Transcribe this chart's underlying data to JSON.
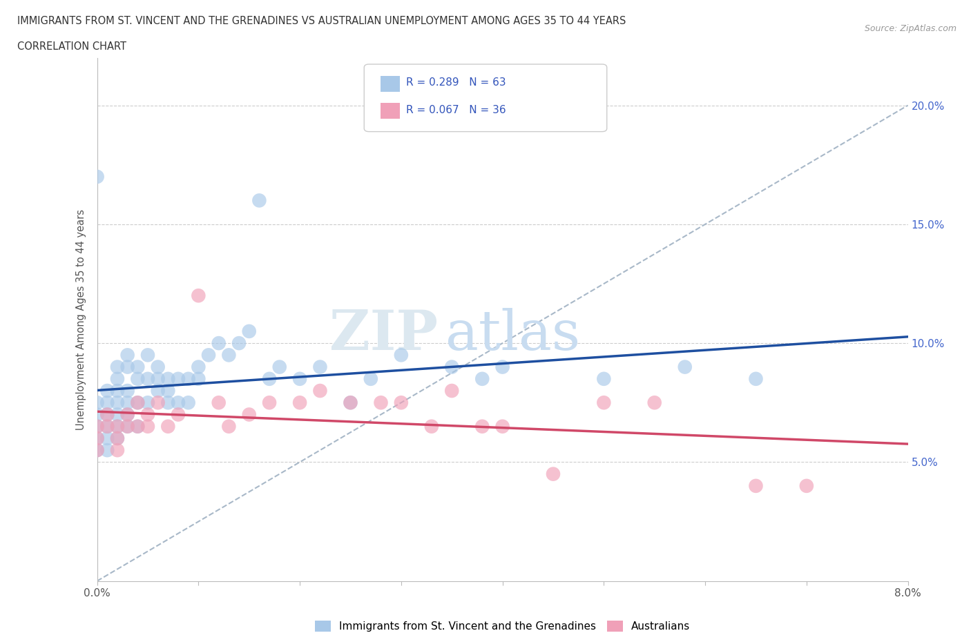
{
  "title_line1": "IMMIGRANTS FROM ST. VINCENT AND THE GRENADINES VS AUSTRALIAN UNEMPLOYMENT AMONG AGES 35 TO 44 YEARS",
  "title_line2": "CORRELATION CHART",
  "source_text": "Source: ZipAtlas.com",
  "ylabel": "Unemployment Among Ages 35 to 44 years",
  "xlim": [
    0.0,
    0.08
  ],
  "ylim": [
    0.0,
    0.22
  ],
  "blue_color": "#A8C8E8",
  "pink_color": "#F0A0B8",
  "blue_line_color": "#1E4FA0",
  "pink_line_color": "#D04868",
  "dash_line_color": "#A8B8C8",
  "blue_scatter_x": [
    0.0,
    0.0,
    0.0,
    0.0,
    0.0,
    0.001,
    0.001,
    0.001,
    0.001,
    0.001,
    0.001,
    0.002,
    0.002,
    0.002,
    0.002,
    0.002,
    0.002,
    0.002,
    0.003,
    0.003,
    0.003,
    0.003,
    0.003,
    0.003,
    0.004,
    0.004,
    0.004,
    0.004,
    0.005,
    0.005,
    0.005,
    0.006,
    0.006,
    0.006,
    0.007,
    0.007,
    0.007,
    0.008,
    0.008,
    0.009,
    0.009,
    0.01,
    0.01,
    0.011,
    0.012,
    0.013,
    0.014,
    0.015,
    0.016,
    0.017,
    0.018,
    0.02,
    0.022,
    0.025,
    0.027,
    0.03,
    0.035,
    0.038,
    0.04,
    0.05,
    0.058,
    0.065,
    0.0
  ],
  "blue_scatter_y": [
    0.07,
    0.075,
    0.065,
    0.06,
    0.055,
    0.08,
    0.075,
    0.07,
    0.065,
    0.06,
    0.055,
    0.09,
    0.085,
    0.08,
    0.075,
    0.07,
    0.065,
    0.06,
    0.095,
    0.09,
    0.08,
    0.075,
    0.07,
    0.065,
    0.09,
    0.085,
    0.075,
    0.065,
    0.095,
    0.085,
    0.075,
    0.09,
    0.085,
    0.08,
    0.085,
    0.08,
    0.075,
    0.085,
    0.075,
    0.085,
    0.075,
    0.09,
    0.085,
    0.095,
    0.1,
    0.095,
    0.1,
    0.105,
    0.16,
    0.085,
    0.09,
    0.085,
    0.09,
    0.075,
    0.085,
    0.095,
    0.09,
    0.085,
    0.09,
    0.085,
    0.09,
    0.085,
    0.17
  ],
  "pink_scatter_x": [
    0.0,
    0.0,
    0.0,
    0.001,
    0.001,
    0.002,
    0.002,
    0.002,
    0.003,
    0.003,
    0.004,
    0.004,
    0.005,
    0.005,
    0.006,
    0.007,
    0.008,
    0.01,
    0.012,
    0.013,
    0.015,
    0.017,
    0.02,
    0.022,
    0.025,
    0.028,
    0.03,
    0.033,
    0.035,
    0.038,
    0.04,
    0.045,
    0.05,
    0.055,
    0.065,
    0.07
  ],
  "pink_scatter_y": [
    0.065,
    0.06,
    0.055,
    0.07,
    0.065,
    0.065,
    0.06,
    0.055,
    0.07,
    0.065,
    0.075,
    0.065,
    0.07,
    0.065,
    0.075,
    0.065,
    0.07,
    0.12,
    0.075,
    0.065,
    0.07,
    0.075,
    0.075,
    0.08,
    0.075,
    0.075,
    0.075,
    0.065,
    0.08,
    0.065,
    0.065,
    0.045,
    0.075,
    0.075,
    0.04,
    0.04
  ],
  "legend_label1": "Immigrants from St. Vincent and the Grenadines",
  "legend_label2": "Australians",
  "legend_r1": "R = 0.289",
  "legend_n1": "N = 63",
  "legend_r2": "R = 0.067",
  "legend_n2": "N = 36"
}
